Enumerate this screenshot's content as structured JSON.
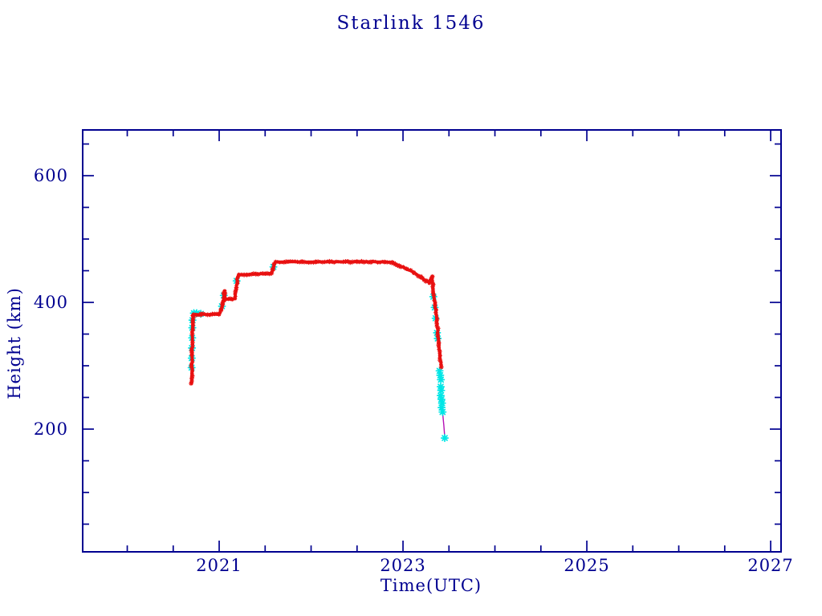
{
  "colors": {
    "axis": "#000090",
    "background": "#ffffff",
    "observed_red": "#e81010",
    "decay_cyan": "#00e6e6",
    "tail_magenta": "#b511b5"
  },
  "chart_data": {
    "type": "line",
    "title": "Starlink 1546",
    "xlabel": "Time(UTC)",
    "ylabel": "Height (km)",
    "xlim": [
      2019.515,
      2027.113
    ],
    "ylim": [
      6.3,
      672.2
    ],
    "grid": false,
    "legend": null,
    "x_major_ticks": [
      2021,
      2023,
      2025,
      2027
    ],
    "x_minor_ticks": [
      2020,
      2020.5,
      2021.5,
      2022,
      2022.5,
      2023.5,
      2024,
      2024.5,
      2025.5,
      2026,
      2026.5
    ],
    "y_major_ticks": [
      200,
      400,
      600
    ],
    "y_minor_ticks": [
      50,
      100,
      150,
      250,
      300,
      350,
      450,
      500,
      550,
      650
    ],
    "series": [
      {
        "name": "height-observed",
        "color": "#e81010",
        "marker": "asterisk",
        "connected": true,
        "points": [
          [
            2020.7,
            272
          ],
          [
            2020.702,
            284
          ],
          [
            2020.704,
            299
          ],
          [
            2020.706,
            317
          ],
          [
            2020.708,
            337
          ],
          [
            2020.71,
            357
          ],
          [
            2020.712,
            371
          ],
          [
            2020.716,
            379
          ],
          [
            2020.72,
            381
          ],
          [
            2020.8,
            381
          ],
          [
            2020.9,
            381
          ],
          [
            2021.0,
            381
          ],
          [
            2021.02,
            388
          ],
          [
            2021.04,
            397
          ],
          [
            2021.048,
            403
          ],
          [
            2021.055,
            418
          ],
          [
            2021.062,
            410
          ],
          [
            2021.07,
            405
          ],
          [
            2021.1,
            405
          ],
          [
            2021.14,
            405
          ],
          [
            2021.17,
            406
          ],
          [
            2021.185,
            420
          ],
          [
            2021.2,
            440
          ],
          [
            2021.215,
            444
          ],
          [
            2021.3,
            444
          ],
          [
            2021.4,
            445
          ],
          [
            2021.5,
            445
          ],
          [
            2021.57,
            446
          ],
          [
            2021.585,
            452
          ],
          [
            2021.6,
            460
          ],
          [
            2021.615,
            464
          ],
          [
            2021.75,
            464
          ],
          [
            2021.9,
            464
          ],
          [
            2022.05,
            464
          ],
          [
            2022.2,
            464
          ],
          [
            2022.35,
            464
          ],
          [
            2022.5,
            464
          ],
          [
            2022.65,
            464
          ],
          [
            2022.8,
            464
          ],
          [
            2022.88,
            463
          ],
          [
            2022.96,
            458
          ],
          [
            2023.04,
            453
          ],
          [
            2023.12,
            447
          ],
          [
            2023.19,
            440
          ],
          [
            2023.25,
            434
          ],
          [
            2023.29,
            431
          ],
          [
            2023.305,
            436
          ],
          [
            2023.315,
            441
          ],
          [
            2023.325,
            425
          ],
          [
            2023.335,
            411
          ],
          [
            2023.35,
            396
          ],
          [
            2023.36,
            384
          ],
          [
            2023.375,
            359
          ],
          [
            2023.39,
            336
          ],
          [
            2023.4,
            316
          ],
          [
            2023.418,
            298
          ]
        ]
      },
      {
        "name": "height-decay-cyan",
        "color": "#00e6e6",
        "marker": "star",
        "connected": false,
        "points": [
          [
            2020.7,
            297
          ],
          [
            2020.702,
            312
          ],
          [
            2020.704,
            328
          ],
          [
            2020.706,
            344
          ],
          [
            2020.708,
            360
          ],
          [
            2020.71,
            372
          ],
          [
            2020.725,
            383
          ],
          [
            2020.755,
            383
          ],
          [
            2020.8,
            382
          ],
          [
            2021.03,
            394
          ],
          [
            2021.05,
            411
          ],
          [
            2021.19,
            434
          ],
          [
            2021.59,
            456
          ],
          [
            2023.33,
            409
          ],
          [
            2023.345,
            392
          ],
          [
            2023.355,
            375
          ],
          [
            2023.37,
            352
          ],
          [
            2023.378,
            343
          ],
          [
            2023.398,
            292
          ],
          [
            2023.405,
            285
          ],
          [
            2023.412,
            278
          ],
          [
            2023.41,
            267
          ],
          [
            2023.415,
            261
          ],
          [
            2023.41,
            253
          ],
          [
            2023.418,
            247
          ],
          [
            2023.425,
            241
          ],
          [
            2023.42,
            234
          ],
          [
            2023.43,
            227
          ],
          [
            2023.454,
            186
          ]
        ]
      },
      {
        "name": "decay-tail-line",
        "color": "#b511b5",
        "marker": null,
        "connected": true,
        "points": [
          [
            2023.43,
            227
          ],
          [
            2023.444,
            206
          ],
          [
            2023.454,
            188
          ]
        ]
      }
    ]
  }
}
